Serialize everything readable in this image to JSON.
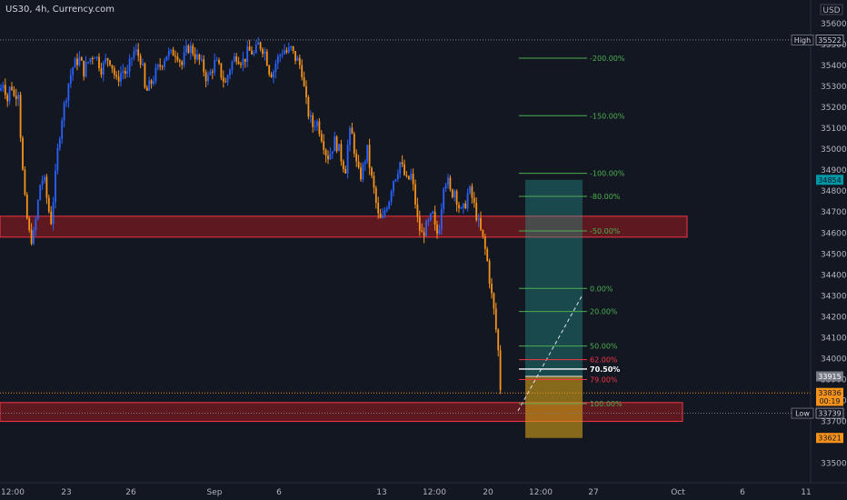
{
  "header": {
    "symbol_line": "US30, 4h, Currency.com",
    "currency": "USD"
  },
  "colors": {
    "background": "#131722",
    "bull": "#2962ff",
    "bear": "#f7931a",
    "zone_fill": "#b71c1c",
    "zone_border": "#f23645",
    "fib_green": "#4caf50",
    "fib_red": "#f23645",
    "target_fill": "#26a69a",
    "stop_fill": "#d4a017",
    "axis_text": "#b2b5be"
  },
  "chart_data": {
    "type": "candlestick",
    "symbol": "US30",
    "timeframe": "4h",
    "y_axis": {
      "range": [
        33400,
        35720
      ],
      "ticks": [
        35600,
        35500,
        35400,
        35300,
        35200,
        35100,
        35000,
        34900,
        34800,
        34700,
        34600,
        34500,
        34400,
        34300,
        34200,
        34100,
        34000,
        33900,
        33800,
        33700,
        33500
      ]
    },
    "x_axis": {
      "ticks": [
        "12:00",
        "23",
        "26",
        "Sep",
        "6",
        "13",
        "12:00",
        "20",
        "12:00",
        "27",
        "Oct",
        "6",
        "11"
      ]
    },
    "price_path": [
      [
        0,
        35280
      ],
      [
        4,
        35330
      ],
      [
        8,
        35230
      ],
      [
        12,
        35320
      ],
      [
        16,
        35240
      ],
      [
        20,
        35300
      ],
      [
        24,
        34950
      ],
      [
        28,
        34720
      ],
      [
        32,
        34600
      ],
      [
        36,
        34560
      ],
      [
        40,
        34680
      ],
      [
        44,
        34830
      ],
      [
        48,
        34870
      ],
      [
        52,
        34750
      ],
      [
        56,
        34650
      ],
      [
        60,
        34820
      ],
      [
        64,
        35020
      ],
      [
        68,
        35150
      ],
      [
        72,
        35240
      ],
      [
        76,
        35330
      ],
      [
        80,
        35390
      ],
      [
        84,
        35420
      ],
      [
        88,
        35430
      ],
      [
        92,
        35370
      ],
      [
        96,
        35410
      ],
      [
        100,
        35440
      ],
      [
        104,
        35460
      ],
      [
        108,
        35420
      ],
      [
        112,
        35380
      ],
      [
        116,
        35420
      ],
      [
        120,
        35440
      ],
      [
        124,
        35390
      ],
      [
        128,
        35320
      ],
      [
        132,
        35360
      ],
      [
        136,
        35380
      ],
      [
        140,
        35350
      ],
      [
        144,
        35430
      ],
      [
        148,
        35470
      ],
      [
        152,
        35450
      ],
      [
        156,
        35420
      ],
      [
        160,
        35260
      ],
      [
        164,
        35300
      ],
      [
        168,
        35330
      ],
      [
        172,
        35370
      ],
      [
        176,
        35400
      ],
      [
        180,
        35430
      ],
      [
        184,
        35460
      ],
      [
        188,
        35450
      ],
      [
        192,
        35470
      ],
      [
        196,
        35450
      ],
      [
        200,
        35400
      ],
      [
        204,
        35460
      ],
      [
        208,
        35490
      ],
      [
        212,
        35470
      ],
      [
        216,
        35440
      ],
      [
        220,
        35420
      ],
      [
        224,
        35380
      ],
      [
        228,
        35330
      ],
      [
        232,
        35370
      ],
      [
        236,
        35410
      ],
      [
        240,
        35400
      ],
      [
        244,
        35350
      ],
      [
        248,
        35310
      ],
      [
        252,
        35380
      ],
      [
        256,
        35420
      ],
      [
        260,
        35450
      ],
      [
        264,
        35430
      ],
      [
        268,
        35420
      ],
      [
        272,
        35460
      ],
      [
        276,
        35470
      ],
      [
        280,
        35450
      ],
      [
        284,
        35500
      ],
      [
        288,
        35490
      ],
      [
        292,
        35460
      ],
      [
        296,
        35380
      ],
      [
        300,
        35360
      ],
      [
        304,
        35420
      ],
      [
        308,
        35450
      ],
      [
        312,
        35480
      ],
      [
        316,
        35460
      ],
      [
        320,
        35480
      ],
      [
        324,
        35440
      ],
      [
        328,
        35420
      ],
      [
        332,
        35380
      ],
      [
        336,
        35240
      ],
      [
        340,
        35160
      ],
      [
        344,
        35110
      ],
      [
        348,
        35140
      ],
      [
        352,
        35090
      ],
      [
        356,
        35030
      ],
      [
        360,
        34960
      ],
      [
        364,
        34990
      ],
      [
        368,
        35040
      ],
      [
        372,
        35010
      ],
      [
        376,
        34950
      ],
      [
        380,
        34900
      ],
      [
        384,
        35080
      ],
      [
        388,
        35060
      ],
      [
        392,
        34930
      ],
      [
        396,
        34860
      ],
      [
        400,
        34920
      ],
      [
        404,
        35000
      ],
      [
        408,
        34880
      ],
      [
        412,
        34790
      ],
      [
        416,
        34680
      ],
      [
        420,
        34650
      ],
      [
        424,
        34720
      ],
      [
        428,
        34760
      ],
      [
        432,
        34850
      ],
      [
        436,
        34880
      ],
      [
        440,
        34940
      ],
      [
        444,
        34890
      ],
      [
        448,
        34840
      ],
      [
        452,
        34880
      ],
      [
        456,
        34780
      ],
      [
        460,
        34640
      ],
      [
        464,
        34590
      ],
      [
        468,
        34620
      ],
      [
        472,
        34650
      ],
      [
        476,
        34690
      ],
      [
        480,
        34580
      ],
      [
        484,
        34650
      ],
      [
        488,
        34840
      ],
      [
        492,
        34860
      ],
      [
        496,
        34780
      ],
      [
        500,
        34810
      ],
      [
        504,
        34740
      ],
      [
        508,
        34690
      ],
      [
        512,
        34740
      ],
      [
        516,
        34810
      ],
      [
        520,
        34760
      ],
      [
        524,
        34690
      ],
      [
        528,
        34620
      ],
      [
        532,
        34560
      ],
      [
        536,
        34470
      ],
      [
        540,
        34330
      ],
      [
        544,
        34210
      ],
      [
        548,
        34050
      ],
      [
        552,
        33760
      ]
    ],
    "horizontal_levels": [
      {
        "label": "High",
        "price": 35522
      },
      {
        "label": "Low",
        "price": 33739
      }
    ],
    "dotted_levels": [
      {
        "price": 33836
      }
    ],
    "zones": [
      {
        "top": 34680,
        "bottom": 34580
      },
      {
        "top": 33790,
        "bottom": 33700
      }
    ],
    "fib_levels": [
      {
        "label": "-200.00%",
        "price": 35435,
        "color": "green"
      },
      {
        "label": "-150.00%",
        "price": 35160,
        "color": "green"
      },
      {
        "label": "-100.00%",
        "price": 34885,
        "color": "green"
      },
      {
        "label": "-80.00%",
        "price": 34775,
        "color": "green"
      },
      {
        "label": "-50.00%",
        "price": 34610,
        "color": "green"
      },
      {
        "label": "0.00%",
        "price": 34335,
        "color": "green"
      },
      {
        "label": "20.00%",
        "price": 34225,
        "color": "green"
      },
      {
        "label": "50.00%",
        "price": 34060,
        "color": "green"
      },
      {
        "label": "62.00%",
        "price": 33995,
        "color": "red"
      },
      {
        "label": "70.50%",
        "price": 33950,
        "color": "white"
      },
      {
        "label": "79.00%",
        "price": 33900,
        "color": "red"
      },
      {
        "label": "100.00%",
        "price": 33785,
        "color": "green"
      }
    ],
    "position": {
      "entry": 33915,
      "target": 34854,
      "stop": 33621
    },
    "price_tags": [
      {
        "label": "High",
        "price": "35522",
        "value": 35522,
        "style": "dark"
      },
      {
        "label": "",
        "price": "34854",
        "value": 34854,
        "style": "teal"
      },
      {
        "label": "",
        "price": "33915",
        "value": 33915,
        "style": "grey"
      },
      {
        "label": "",
        "price": "33836",
        "value": 33836,
        "style": "orange"
      },
      {
        "label": "",
        "price": "00:19",
        "value": 33798,
        "style": "orange"
      },
      {
        "label": "Low",
        "price": "33739",
        "value": 33739,
        "style": "dark"
      },
      {
        "label": "",
        "price": "33621",
        "value": 33621,
        "style": "orange"
      }
    ]
  }
}
